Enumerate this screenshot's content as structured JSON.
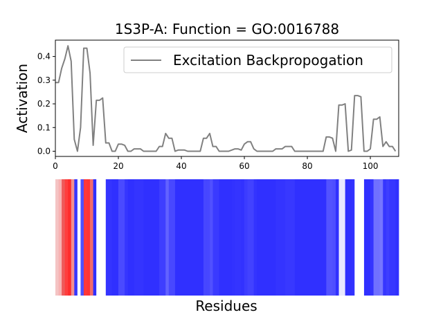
{
  "chart_data": [
    {
      "type": "line",
      "title": "1S3P-A: Function = GO:0016788",
      "xlabel": "",
      "ylabel": "Activation",
      "xlim": [
        0,
        109
      ],
      "ylim": [
        -0.022,
        0.469
      ],
      "xticks": [
        0,
        20,
        40,
        60,
        80,
        100
      ],
      "yticks": [
        0.0,
        0.1,
        0.2,
        0.3,
        0.4
      ],
      "ytick_labels": [
        "0.0",
        "0.1",
        "0.2",
        "0.3",
        "0.4"
      ],
      "legend_position": "upper-right",
      "series": [
        {
          "name": "Excitation Backpropogation",
          "color": "#808080",
          "x": [
            0,
            1,
            2,
            3,
            4,
            5,
            6,
            7,
            8,
            9,
            10,
            11,
            12,
            13,
            14,
            15,
            16,
            17,
            18,
            19,
            20,
            21,
            22,
            23,
            24,
            25,
            26,
            27,
            28,
            29,
            30,
            31,
            32,
            33,
            34,
            35,
            36,
            37,
            38,
            39,
            40,
            41,
            42,
            43,
            44,
            45,
            46,
            47,
            48,
            49,
            50,
            51,
            52,
            53,
            54,
            55,
            56,
            57,
            58,
            59,
            60,
            61,
            62,
            63,
            64,
            65,
            66,
            67,
            68,
            69,
            70,
            71,
            72,
            73,
            74,
            75,
            76,
            77,
            78,
            79,
            80,
            81,
            82,
            83,
            84,
            85,
            86,
            87,
            88,
            89,
            90,
            91,
            92,
            93,
            94,
            95,
            96,
            97,
            98,
            99,
            100,
            101,
            102,
            103,
            104,
            105,
            106,
            107,
            108
          ],
          "values": [
            0.29,
            0.29,
            0.35,
            0.39,
            0.445,
            0.38,
            0.05,
            0.0,
            0.1,
            0.435,
            0.435,
            0.33,
            0.025,
            0.215,
            0.215,
            0.225,
            0.035,
            0.035,
            0.0,
            0.0,
            0.03,
            0.03,
            0.025,
            0.0,
            0.0,
            0.01,
            0.01,
            0.01,
            0.0,
            0.0,
            0.0,
            0.0,
            0.0,
            0.02,
            0.02,
            0.075,
            0.055,
            0.055,
            0.0,
            0.005,
            0.005,
            0.005,
            0.0,
            0.0,
            0.0,
            0.0,
            0.0,
            0.055,
            0.055,
            0.075,
            0.02,
            0.02,
            0.0,
            0.0,
            0.0,
            0.0,
            0.005,
            0.01,
            0.01,
            0.005,
            0.03,
            0.04,
            0.04,
            0.01,
            0.0,
            0.0,
            0.0,
            0.0,
            0.0,
            0.0,
            0.01,
            0.01,
            0.01,
            0.02,
            0.02,
            0.02,
            0.0,
            0.0,
            0.0,
            0.0,
            0.0,
            0.0,
            0.0,
            0.0,
            0.0,
            0.0,
            0.06,
            0.06,
            0.055,
            0.0,
            0.195,
            0.195,
            0.2,
            0.0,
            0.005,
            0.235,
            0.235,
            0.23,
            0.0,
            0.0,
            0.01,
            0.135,
            0.135,
            0.145,
            0.02,
            0.04,
            0.02,
            0.02,
            0.0
          ]
        }
      ]
    },
    {
      "type": "heatmap",
      "xlabel": "Residues",
      "ylabel": "",
      "colors": [
        "#f4c4c4",
        "#f7b2b2",
        "#ee5a5a",
        "#ff3e3e",
        "#ff2c2c",
        "#f09090",
        "#3636ff",
        "#ffffff",
        "#5050ff",
        "#ff3838",
        "#ff3434",
        "#f36c6c",
        "#3030ff",
        "#ffffff",
        "#ffffff",
        "#ffffff",
        "#3434ff",
        "#3434ff",
        "#3030ff",
        "#3030ff",
        "#4a4aff",
        "#4a4aff",
        "#3636ff",
        "#3030ff",
        "#3030ff",
        "#3434ff",
        "#3434ff",
        "#3434ff",
        "#3030ff",
        "#3030ff",
        "#3030ff",
        "#3030ff",
        "#3030ff",
        "#3e3eff",
        "#3e3eff",
        "#6262ff",
        "#4848ff",
        "#4848ff",
        "#3030ff",
        "#3030ff",
        "#3030ff",
        "#3030ff",
        "#3030ff",
        "#3030ff",
        "#3030ff",
        "#3030ff",
        "#3030ff",
        "#4747ff",
        "#4747ff",
        "#5050ff",
        "#3a3aff",
        "#3a3aff",
        "#3030ff",
        "#3030ff",
        "#3030ff",
        "#3030ff",
        "#3232ff",
        "#3434ff",
        "#3434ff",
        "#3232ff",
        "#3c3cff",
        "#4242ff",
        "#4242ff",
        "#3434ff",
        "#3030ff",
        "#3030ff",
        "#3030ff",
        "#3030ff",
        "#3030ff",
        "#3030ff",
        "#3434ff",
        "#3434ff",
        "#3434ff",
        "#3838ff",
        "#3838ff",
        "#3838ff",
        "#3030ff",
        "#3030ff",
        "#3030ff",
        "#3030ff",
        "#3030ff",
        "#3030ff",
        "#3030ff",
        "#3030ff",
        "#3030ff",
        "#3030ff",
        "#5252ff",
        "#5252ff",
        "#4e4eff",
        "#3030ff",
        "#e8e8ff",
        "#e8e8ff",
        "#3030ff",
        "#3030ff",
        "#3232ff",
        "#ffffff",
        "#ffffff",
        "#ffffff",
        "#3030ff",
        "#3030ff",
        "#3434ff",
        "#7070ff",
        "#7070ff",
        "#7676ff",
        "#3636ff",
        "#3e3eff",
        "#3636ff",
        "#3636ff",
        "#3030ff"
      ]
    }
  ]
}
